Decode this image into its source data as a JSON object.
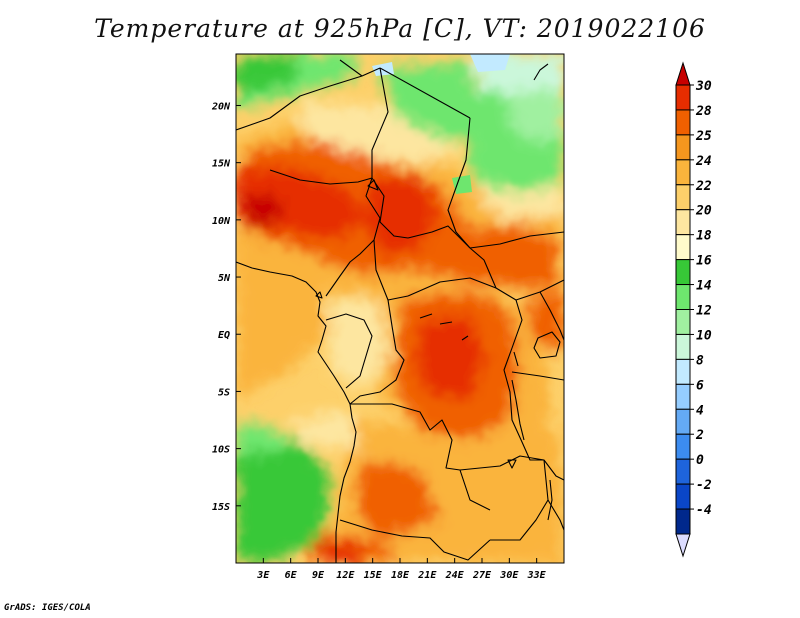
{
  "title": "Temperature at 925hPa [C], VT: 2019022106",
  "footer": "GrADS: IGES/COLA",
  "map": {
    "variable": "Temperature at 925hPa",
    "units": "C",
    "valid_time": "2019022106",
    "region": "Central Africa",
    "lon_range": [
      0,
      36
    ],
    "lat_range": [
      -20,
      24.5
    ]
  },
  "axes": {
    "x_ticks": [
      {
        "value": 3,
        "label": "3E"
      },
      {
        "value": 6,
        "label": "6E"
      },
      {
        "value": 9,
        "label": "9E"
      },
      {
        "value": 12,
        "label": "12E"
      },
      {
        "value": 15,
        "label": "15E"
      },
      {
        "value": 18,
        "label": "18E"
      },
      {
        "value": 21,
        "label": "21E"
      },
      {
        "value": 24,
        "label": "24E"
      },
      {
        "value": 27,
        "label": "27E"
      },
      {
        "value": 30,
        "label": "30E"
      },
      {
        "value": 33,
        "label": "33E"
      }
    ],
    "y_ticks": [
      {
        "value": 20,
        "label": "20N"
      },
      {
        "value": 15,
        "label": "15N"
      },
      {
        "value": 10,
        "label": "10N"
      },
      {
        "value": 5,
        "label": "5N"
      },
      {
        "value": 0,
        "label": "EQ"
      },
      {
        "value": -5,
        "label": "5S"
      },
      {
        "value": -10,
        "label": "10S"
      },
      {
        "value": -15,
        "label": "15S"
      }
    ]
  },
  "colorbar": {
    "labels": [
      "30",
      "28",
      "25",
      "24",
      "22",
      "20",
      "18",
      "16",
      "14",
      "12",
      "10",
      "8",
      "6",
      "4",
      "2",
      "0",
      "-2",
      "-4"
    ],
    "colors": [
      "#c70000",
      "#e62d00",
      "#f06000",
      "#f5961e",
      "#fab43c",
      "#fdd06a",
      "#fde6a0",
      "#fffbcb",
      "#37c837",
      "#6ee66e",
      "#a0f0a0",
      "#cbf7da",
      "#c2eaff",
      "#95cdff",
      "#64aaf5",
      "#3c8cf0",
      "#1e64dc",
      "#0a46c8",
      "#00288c"
    ],
    "lower_arrow_color": "#dcdcff"
  },
  "palette": {
    "very_hot": "#c70000",
    "hot": "#e62d00",
    "warm_orange": "#f06000",
    "orange": "#f5961e",
    "light_orange": "#fab43c",
    "pale": "#fdd06a",
    "cream": "#fde6a0",
    "green": "#37c837",
    "light_green": "#6ee66e",
    "pale_green": "#a0f0a0",
    "mint": "#cbf7da",
    "sky": "#c2eaff"
  }
}
